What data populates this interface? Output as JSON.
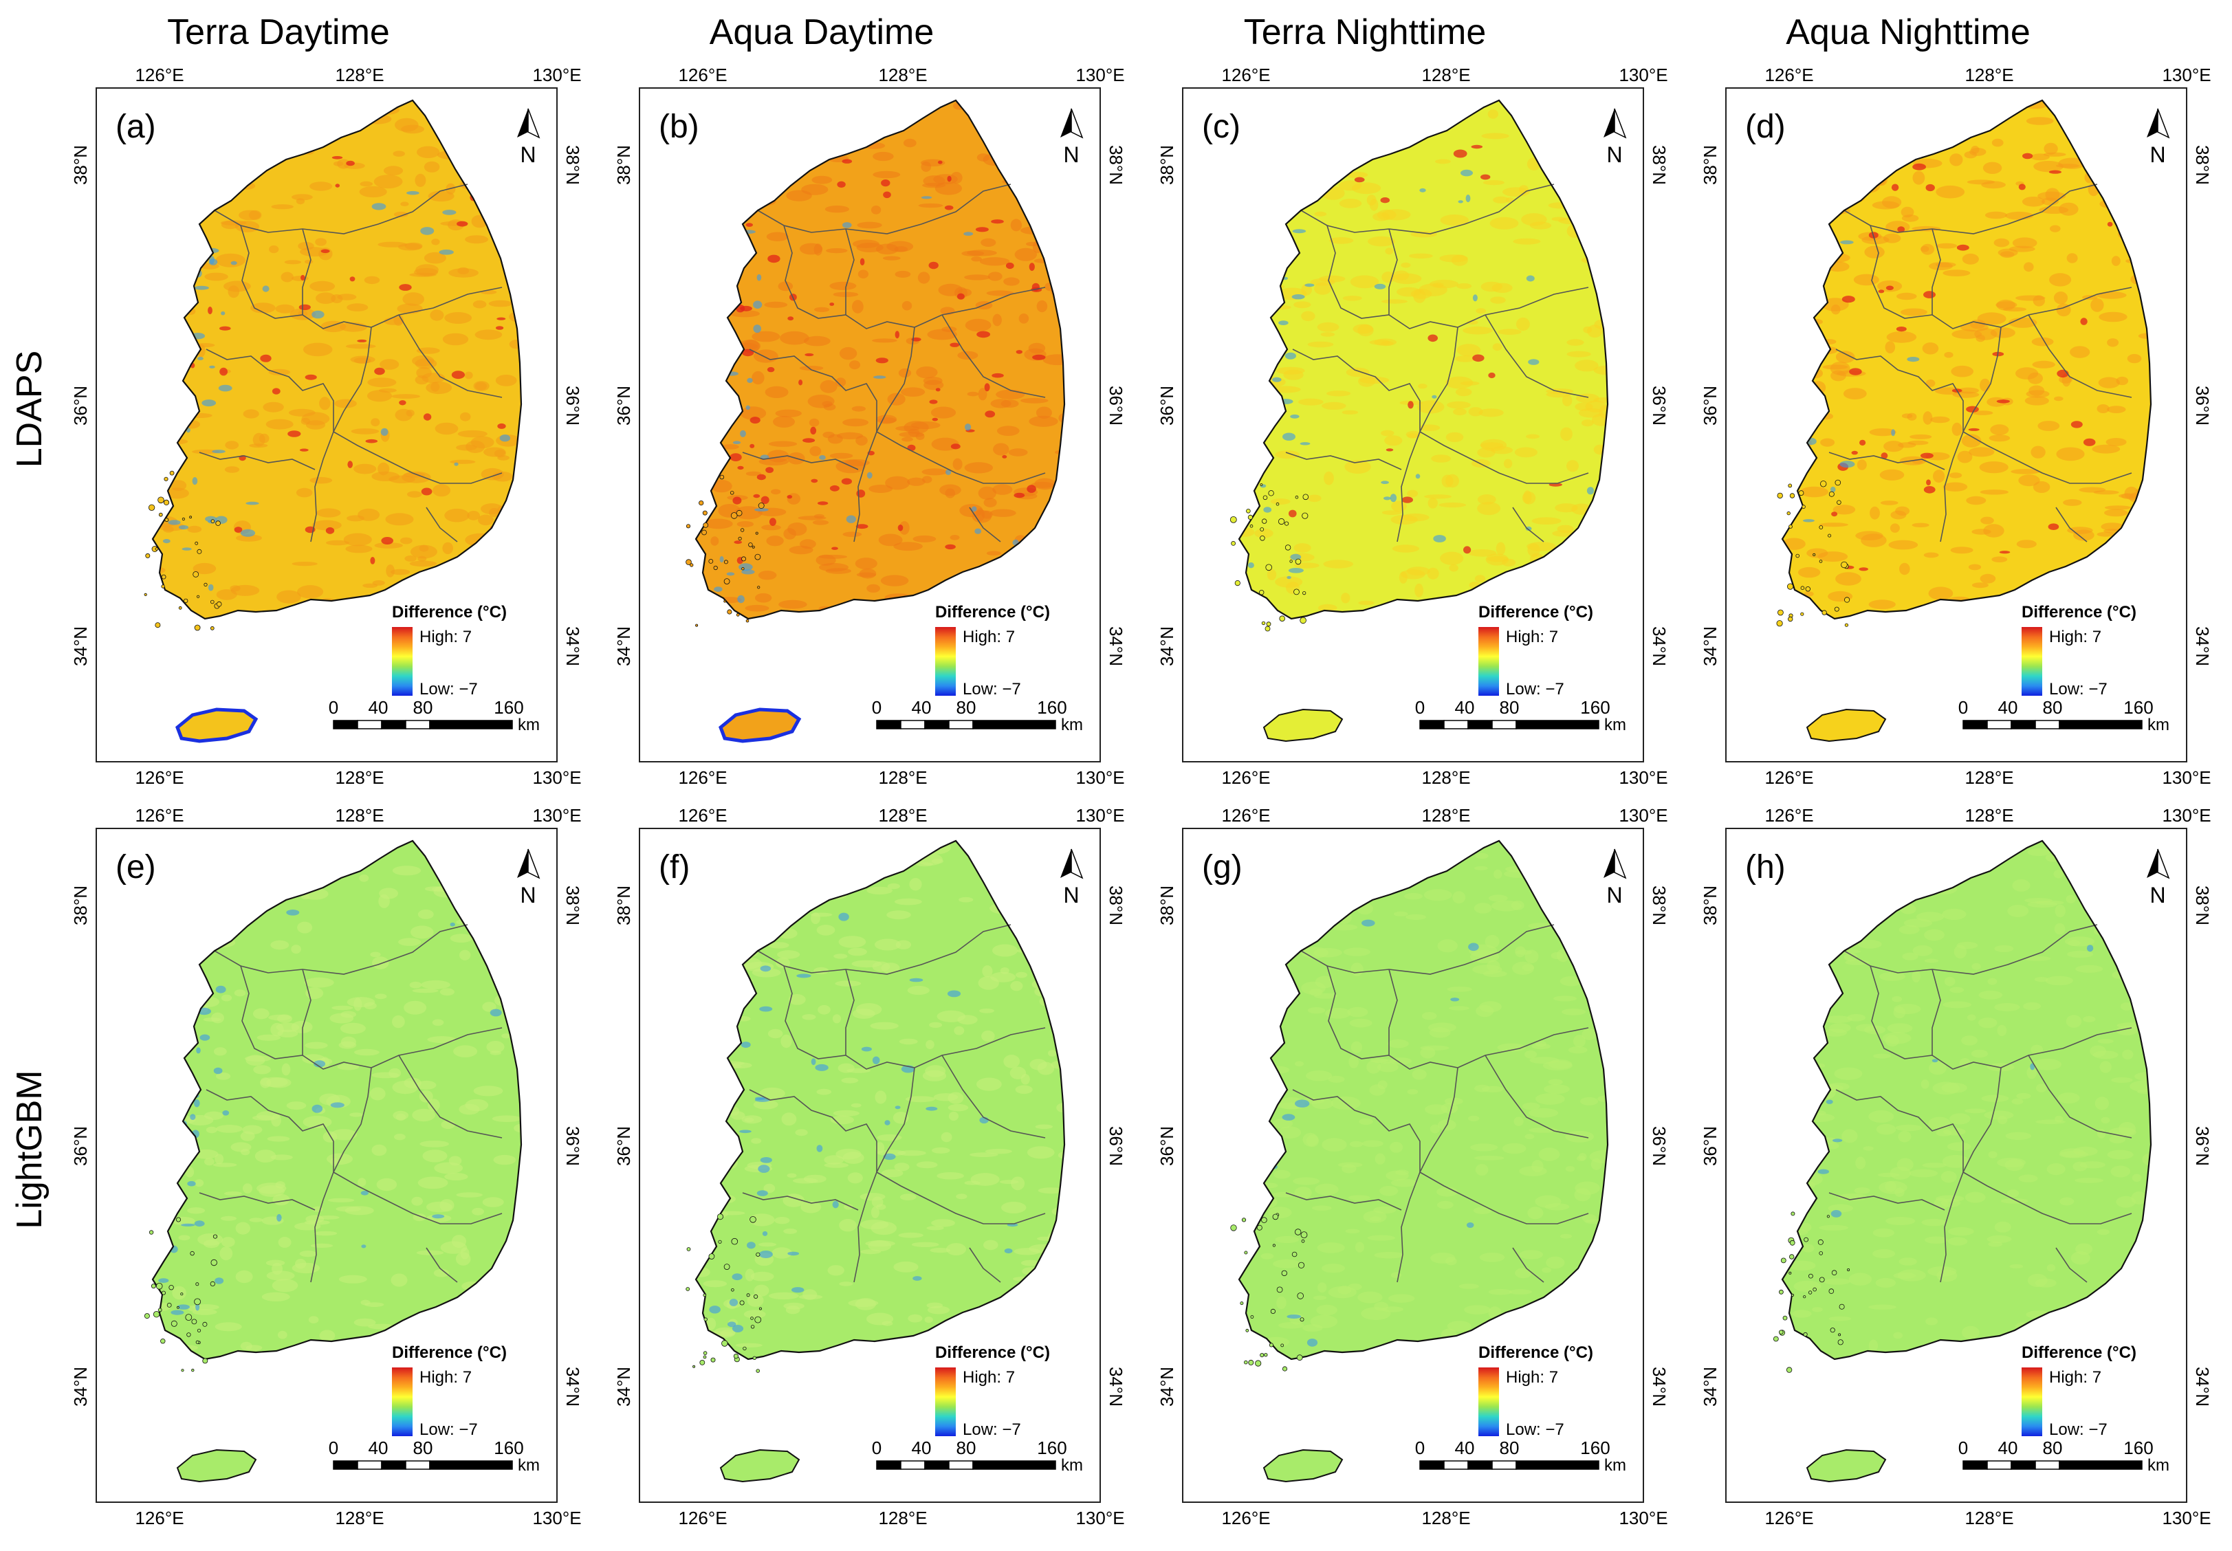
{
  "columns": [
    "Terra Daytime",
    "Aqua Daytime",
    "Terra Nighttime",
    "Aqua Nighttime"
  ],
  "rows": [
    "LDAPS",
    "LightGBM"
  ],
  "panels": [
    {
      "label": "(a)",
      "row": 0,
      "col": 0
    },
    {
      "label": "(b)",
      "row": 0,
      "col": 1
    },
    {
      "label": "(c)",
      "row": 0,
      "col": 2
    },
    {
      "label": "(d)",
      "row": 0,
      "col": 3
    },
    {
      "label": "(e)",
      "row": 1,
      "col": 0
    },
    {
      "label": "(f)",
      "row": 1,
      "col": 1
    },
    {
      "label": "(g)",
      "row": 1,
      "col": 2
    },
    {
      "label": "(h)",
      "row": 1,
      "col": 3
    }
  ],
  "lon_ticks": [
    "126°E",
    "128°E",
    "130°E"
  ],
  "lat_ticks": [
    "38°N",
    "36°N",
    "34°N"
  ],
  "north_label": "N",
  "legend": {
    "title": "Difference (°C)",
    "high": "High: 7",
    "low": "Low: −7",
    "colors": [
      "#d7191c",
      "#f46d1e",
      "#fdae20",
      "#ffff33",
      "#9be650",
      "#2fd6c8",
      "#2a8cf0",
      "#1020e0"
    ]
  },
  "scalebar": {
    "ticks": [
      "0",
      "40",
      "80",
      "160"
    ],
    "unit": "km"
  },
  "field_colors": {
    "ldaps_day_terra": "#f4c31c",
    "ldaps_day_aqua": "#f2a21a",
    "ldaps_night_terra": "#e4ee36",
    "ldaps_night_aqua": "#f6d21c",
    "lightgbm": "#a8eb6a",
    "hot": "#e2241a",
    "cool": "#3a9ae8",
    "outline": "#111111",
    "boundary": "#555555"
  }
}
